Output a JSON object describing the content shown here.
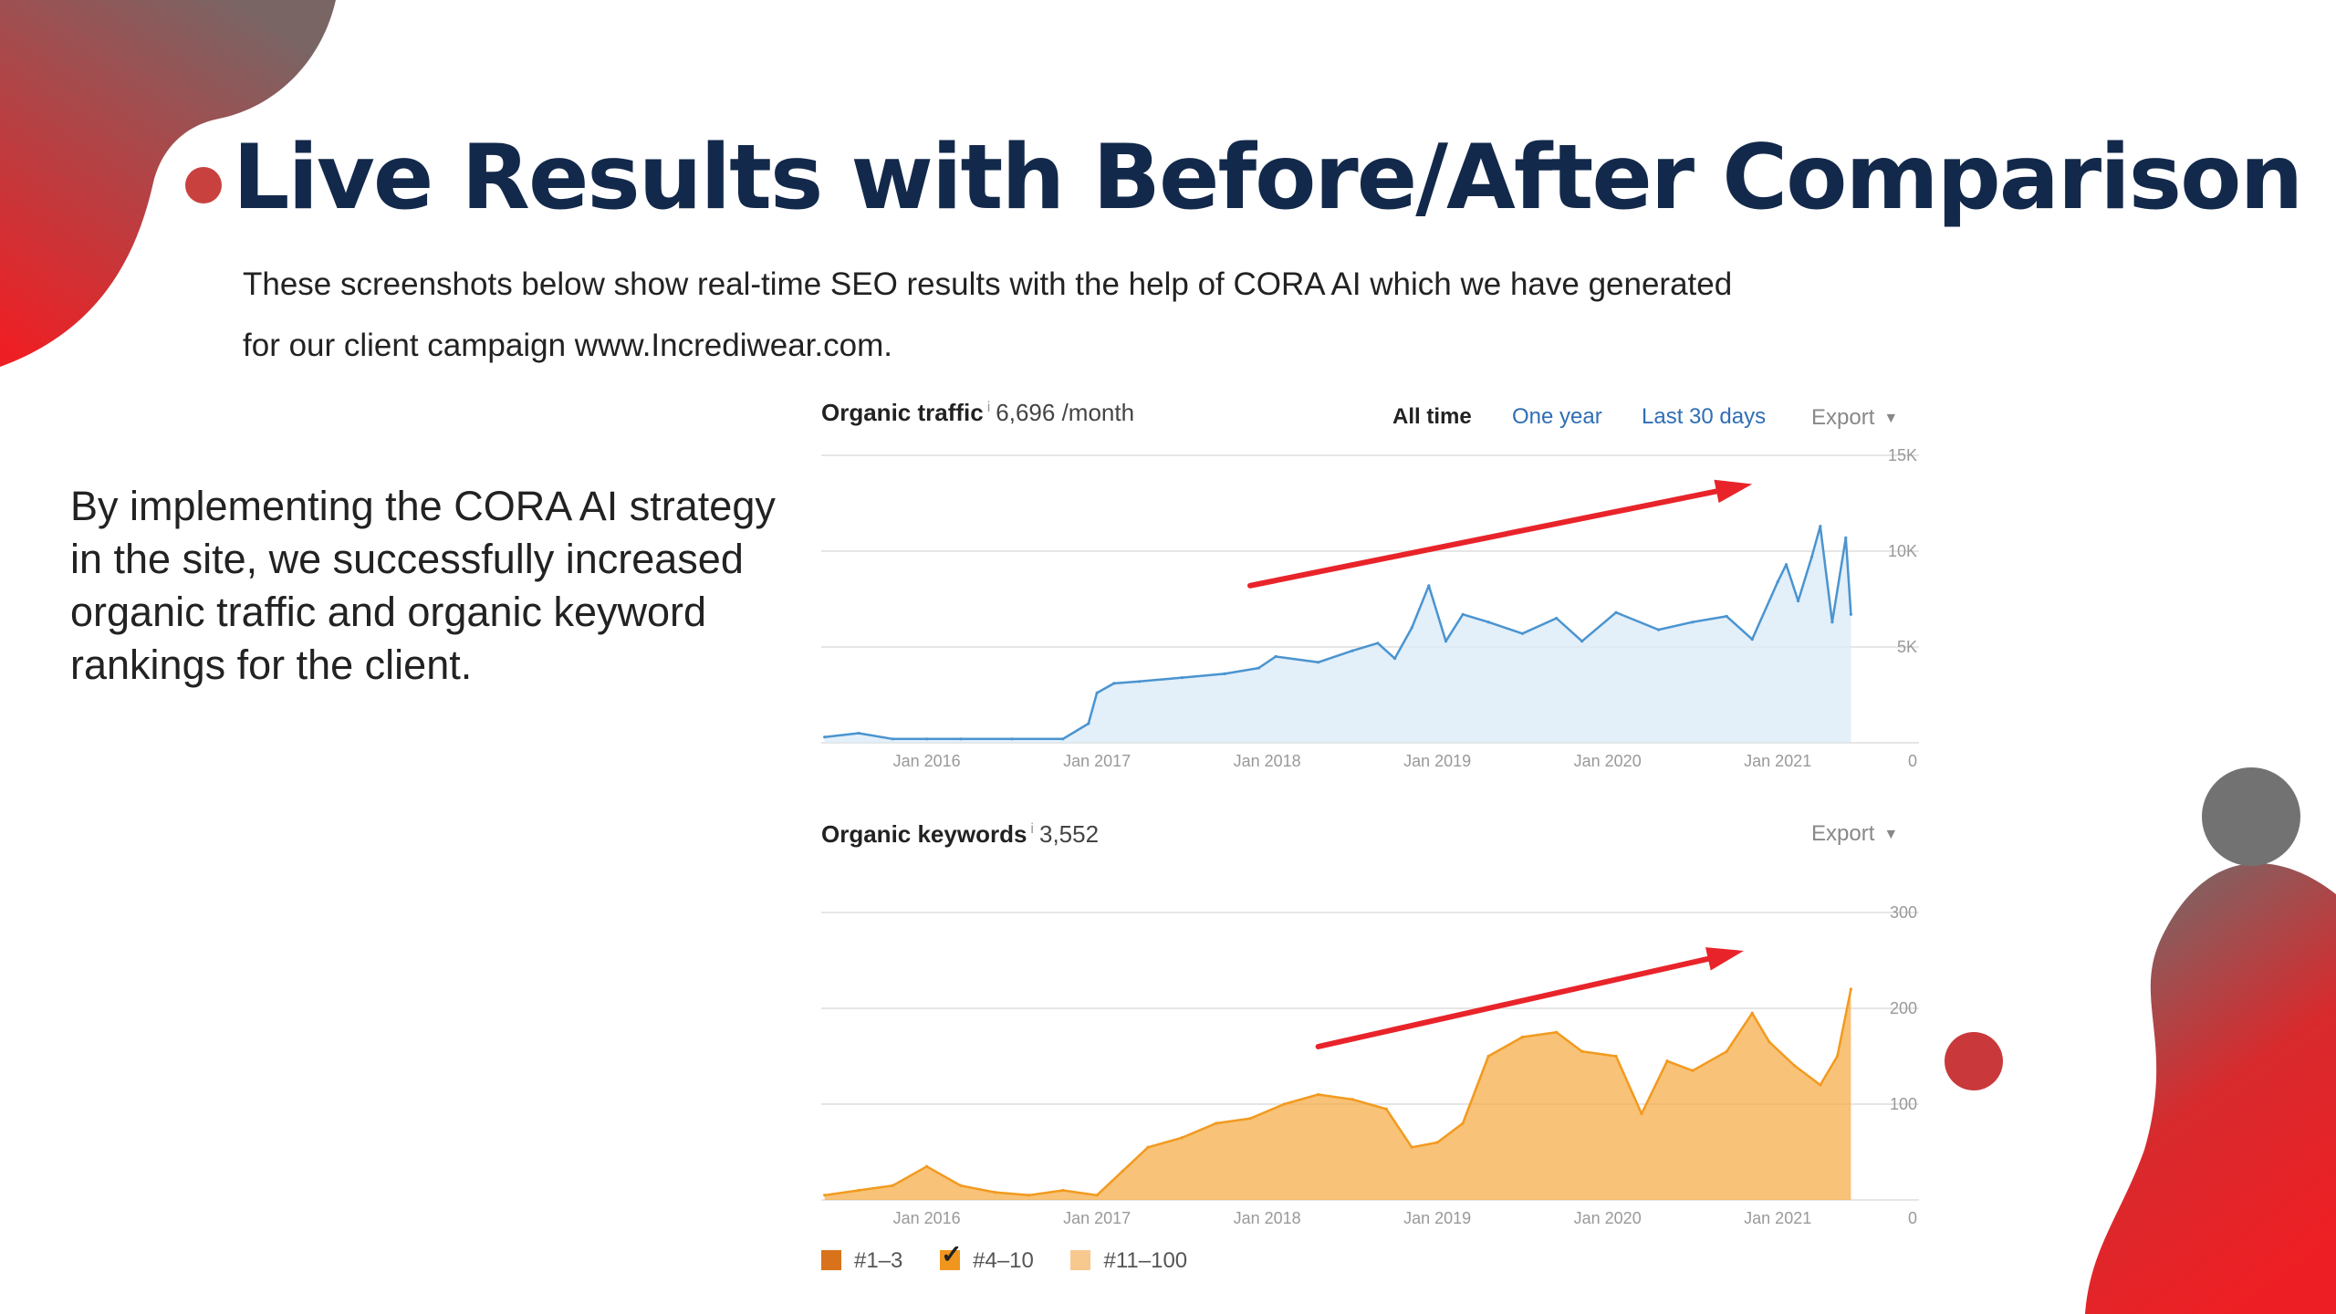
{
  "slide": {
    "title": "Live Results with Before/After Comparison",
    "subtitle_line1": "These screenshots below show real-time SEO results with the help of CORA AI which we have generated",
    "subtitle_line2": "for our client campaign www.Incrediwear.com.",
    "body": "By implementing the CORA AI strategy in the site, we successfully increased organic traffic and organic keyword rankings for the client."
  },
  "colors": {
    "title": "#13294b",
    "accent_red": "#e8282c",
    "accent_gray": "#6f6f6f",
    "traffic_line": "#4a94d0",
    "keywords_line": "#f29a1f",
    "arrow": "#e8242a"
  },
  "traffic_panel": {
    "label": "Organic traffic",
    "info": "i",
    "value": "6,696 /month",
    "tabs": [
      "All time",
      "One year",
      "Last 30 days"
    ],
    "active_tab": "All time",
    "export_label": "Export",
    "export_caret": "▼"
  },
  "keywords_panel": {
    "label": "Organic keywords",
    "info": "i",
    "value": "3,552",
    "export_label": "Export",
    "export_caret": "▼",
    "legend": [
      {
        "label": "#1–3",
        "color": "#d9731b",
        "checked": false
      },
      {
        "label": "#4–10",
        "color": "#f0961e",
        "checked": true
      },
      {
        "label": "#11–100",
        "color": "#f8c98f",
        "checked": false
      }
    ]
  },
  "chart_data": [
    {
      "type": "line",
      "name": "organic-traffic",
      "x_tick_labels": [
        "Jan 2016",
        "Jan 2017",
        "Jan 2018",
        "Jan 2019",
        "Jan 2020",
        "Jan 2021"
      ],
      "y_tick_labels": [
        "15K",
        "10K",
        "5K",
        "0"
      ],
      "ylim": [
        0,
        15000
      ],
      "xlim": [
        2015.38,
        2021.83
      ],
      "x": [
        2015.4,
        2015.6,
        2015.8,
        2016.0,
        2016.2,
        2016.5,
        2016.8,
        2016.95,
        2017.0,
        2017.1,
        2017.25,
        2017.5,
        2017.75,
        2017.95,
        2018.05,
        2018.3,
        2018.5,
        2018.65,
        2018.75,
        2018.85,
        2018.95,
        2019.05,
        2019.15,
        2019.3,
        2019.5,
        2019.7,
        2019.85,
        2020.05,
        2020.3,
        2020.5,
        2020.7,
        2020.85,
        2021.0,
        2021.05,
        2021.12,
        2021.2,
        2021.25,
        2021.32,
        2021.4,
        2021.43
      ],
      "y": [
        300,
        500,
        200,
        200,
        200,
        200,
        200,
        1000,
        2600,
        3100,
        3200,
        3400,
        3600,
        3900,
        4500,
        4200,
        4800,
        5200,
        4400,
        6000,
        8200,
        5300,
        6700,
        6300,
        5700,
        6500,
        5300,
        6800,
        5900,
        6300,
        6600,
        5400,
        8400,
        9300,
        7400,
        9700,
        11300,
        6300,
        10700,
        6700
      ],
      "arrow": {
        "from": [
          2017.9,
          8200
        ],
        "to": [
          2020.85,
          13500
        ]
      }
    },
    {
      "type": "area",
      "name": "organic-keywords",
      "x_tick_labels": [
        "Jan 2016",
        "Jan 2017",
        "Jan 2018",
        "Jan 2019",
        "Jan 2020",
        "Jan 2021"
      ],
      "y_tick_labels": [
        "300",
        "200",
        "100",
        "0"
      ],
      "ylim": [
        0,
        300
      ],
      "xlim": [
        2015.38,
        2021.83
      ],
      "x": [
        2015.4,
        2015.6,
        2015.8,
        2016.0,
        2016.2,
        2016.4,
        2016.6,
        2016.8,
        2017.0,
        2017.15,
        2017.3,
        2017.5,
        2017.7,
        2017.9,
        2018.1,
        2018.3,
        2018.5,
        2018.7,
        2018.85,
        2019.0,
        2019.15,
        2019.3,
        2019.5,
        2019.7,
        2019.85,
        2020.05,
        2020.2,
        2020.35,
        2020.5,
        2020.7,
        2020.85,
        2020.95,
        2021.1,
        2021.25,
        2021.35,
        2021.43
      ],
      "y": [
        5,
        10,
        15,
        35,
        15,
        8,
        5,
        10,
        5,
        30,
        55,
        65,
        80,
        85,
        100,
        110,
        105,
        95,
        55,
        60,
        80,
        150,
        170,
        175,
        155,
        150,
        90,
        145,
        135,
        155,
        195,
        165,
        140,
        120,
        150,
        220
      ],
      "arrow": {
        "from": [
          2018.3,
          160
        ],
        "to": [
          2020.8,
          260
        ]
      }
    }
  ]
}
